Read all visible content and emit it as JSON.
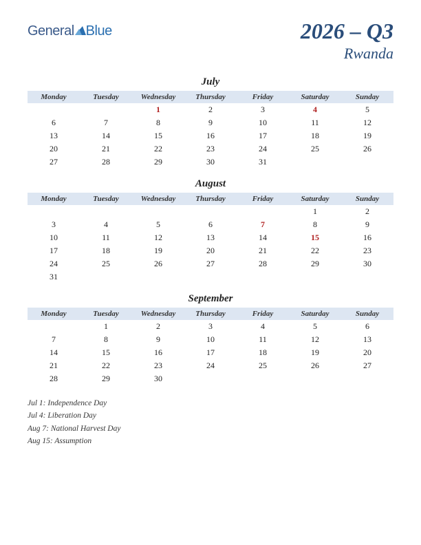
{
  "logo": {
    "part1": "General",
    "part2": "Blue"
  },
  "title": {
    "main": "2026 – Q3",
    "sub": "Rwanda"
  },
  "colors": {
    "header_bg": "#dde6f2",
    "holiday_text": "#b02020",
    "title_color": "#2a4d7a",
    "body_text": "#222222"
  },
  "day_headers": [
    "Monday",
    "Tuesday",
    "Wednesday",
    "Thursday",
    "Friday",
    "Saturday",
    "Sunday"
  ],
  "months": [
    {
      "name": "July",
      "weeks": [
        [
          {
            "d": ""
          },
          {
            "d": ""
          },
          {
            "d": "1",
            "h": true
          },
          {
            "d": "2"
          },
          {
            "d": "3"
          },
          {
            "d": "4",
            "h": true
          },
          {
            "d": "5"
          }
        ],
        [
          {
            "d": "6"
          },
          {
            "d": "7"
          },
          {
            "d": "8"
          },
          {
            "d": "9"
          },
          {
            "d": "10"
          },
          {
            "d": "11"
          },
          {
            "d": "12"
          }
        ],
        [
          {
            "d": "13"
          },
          {
            "d": "14"
          },
          {
            "d": "15"
          },
          {
            "d": "16"
          },
          {
            "d": "17"
          },
          {
            "d": "18"
          },
          {
            "d": "19"
          }
        ],
        [
          {
            "d": "20"
          },
          {
            "d": "21"
          },
          {
            "d": "22"
          },
          {
            "d": "23"
          },
          {
            "d": "24"
          },
          {
            "d": "25"
          },
          {
            "d": "26"
          }
        ],
        [
          {
            "d": "27"
          },
          {
            "d": "28"
          },
          {
            "d": "29"
          },
          {
            "d": "30"
          },
          {
            "d": "31"
          },
          {
            "d": ""
          },
          {
            "d": ""
          }
        ]
      ]
    },
    {
      "name": "August",
      "weeks": [
        [
          {
            "d": ""
          },
          {
            "d": ""
          },
          {
            "d": ""
          },
          {
            "d": ""
          },
          {
            "d": ""
          },
          {
            "d": "1"
          },
          {
            "d": "2"
          }
        ],
        [
          {
            "d": "3"
          },
          {
            "d": "4"
          },
          {
            "d": "5"
          },
          {
            "d": "6"
          },
          {
            "d": "7",
            "h": true
          },
          {
            "d": "8"
          },
          {
            "d": "9"
          }
        ],
        [
          {
            "d": "10"
          },
          {
            "d": "11"
          },
          {
            "d": "12"
          },
          {
            "d": "13"
          },
          {
            "d": "14"
          },
          {
            "d": "15",
            "h": true
          },
          {
            "d": "16"
          }
        ],
        [
          {
            "d": "17"
          },
          {
            "d": "18"
          },
          {
            "d": "19"
          },
          {
            "d": "20"
          },
          {
            "d": "21"
          },
          {
            "d": "22"
          },
          {
            "d": "23"
          }
        ],
        [
          {
            "d": "24"
          },
          {
            "d": "25"
          },
          {
            "d": "26"
          },
          {
            "d": "27"
          },
          {
            "d": "28"
          },
          {
            "d": "29"
          },
          {
            "d": "30"
          }
        ],
        [
          {
            "d": "31"
          },
          {
            "d": ""
          },
          {
            "d": ""
          },
          {
            "d": ""
          },
          {
            "d": ""
          },
          {
            "d": ""
          },
          {
            "d": ""
          }
        ]
      ]
    },
    {
      "name": "September",
      "weeks": [
        [
          {
            "d": ""
          },
          {
            "d": "1"
          },
          {
            "d": "2"
          },
          {
            "d": "3"
          },
          {
            "d": "4"
          },
          {
            "d": "5"
          },
          {
            "d": "6"
          }
        ],
        [
          {
            "d": "7"
          },
          {
            "d": "8"
          },
          {
            "d": "9"
          },
          {
            "d": "10"
          },
          {
            "d": "11"
          },
          {
            "d": "12"
          },
          {
            "d": "13"
          }
        ],
        [
          {
            "d": "14"
          },
          {
            "d": "15"
          },
          {
            "d": "16"
          },
          {
            "d": "17"
          },
          {
            "d": "18"
          },
          {
            "d": "19"
          },
          {
            "d": "20"
          }
        ],
        [
          {
            "d": "21"
          },
          {
            "d": "22"
          },
          {
            "d": "23"
          },
          {
            "d": "24"
          },
          {
            "d": "25"
          },
          {
            "d": "26"
          },
          {
            "d": "27"
          }
        ],
        [
          {
            "d": "28"
          },
          {
            "d": "29"
          },
          {
            "d": "30"
          },
          {
            "d": ""
          },
          {
            "d": ""
          },
          {
            "d": ""
          },
          {
            "d": ""
          }
        ]
      ]
    }
  ],
  "holidays": [
    "Jul 1: Independence Day",
    "Jul 4: Liberation Day",
    "Aug 7: National Harvest Day",
    "Aug 15: Assumption"
  ]
}
